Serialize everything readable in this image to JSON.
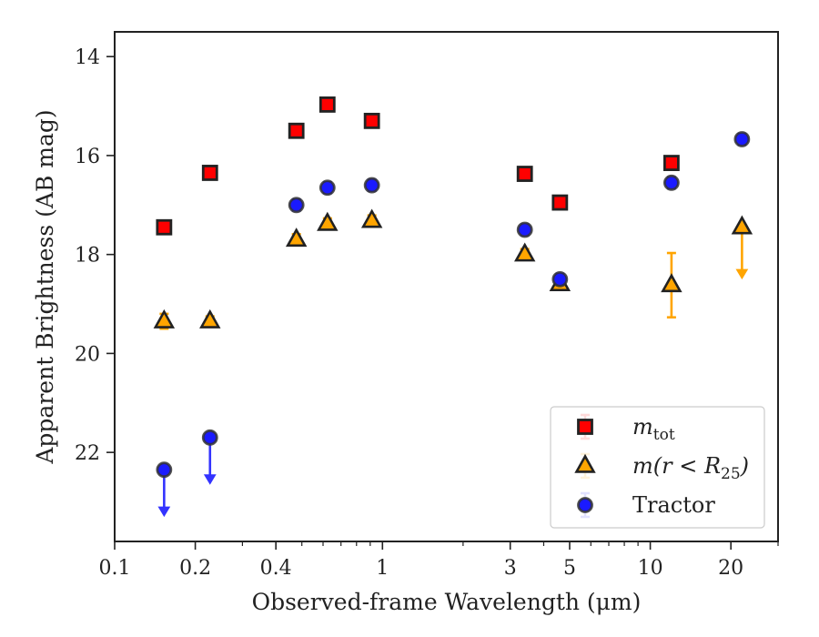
{
  "chart_data": {
    "type": "scatter",
    "xlabel": "Observed-frame Wavelength (μm)",
    "ylabel": "Apparent Brightness (AB mag)",
    "x_scale": "log",
    "xlim": [
      0.1,
      30
    ],
    "ylim": [
      23.8,
      13.5
    ],
    "y_inverted": true,
    "x_ticks": [
      {
        "value": 0.1,
        "label": "0.1"
      },
      {
        "value": 0.2,
        "label": "0.2"
      },
      {
        "value": 0.4,
        "label": "0.4"
      },
      {
        "value": 1,
        "label": "1"
      },
      {
        "value": 3,
        "label": "3"
      },
      {
        "value": 5,
        "label": "5"
      },
      {
        "value": 10,
        "label": "10"
      },
      {
        "value": 20,
        "label": "20"
      }
    ],
    "y_ticks": [
      {
        "value": 14,
        "label": "14"
      },
      {
        "value": 16,
        "label": "16"
      },
      {
        "value": 18,
        "label": "18"
      },
      {
        "value": 20,
        "label": "20"
      },
      {
        "value": 22,
        "label": "22"
      }
    ],
    "grid": false,
    "legend_position": "bottom-right",
    "legend": [
      {
        "label_main": "m",
        "label_sub": "tot",
        "marker": "square"
      },
      {
        "label_main": "m(r < R",
        "label_sub": "25",
        "label_suffix": ")",
        "marker": "triangle"
      },
      {
        "label_main": "Tractor",
        "label_sub": "",
        "marker": "circle"
      }
    ],
    "series": [
      {
        "name": "m_tot",
        "marker": "square",
        "color": "#ff0000",
        "edge_color": "#222222",
        "error_color": "#ff0000",
        "points": [
          {
            "x": 0.153,
            "y": 17.45
          },
          {
            "x": 0.227,
            "y": 16.35
          },
          {
            "x": 0.477,
            "y": 15.5
          },
          {
            "x": 0.623,
            "y": 14.97
          },
          {
            "x": 0.913,
            "y": 15.3
          },
          {
            "x": 3.4,
            "y": 16.37
          },
          {
            "x": 4.6,
            "y": 16.95
          },
          {
            "x": 12.0,
            "y": 16.15
          }
        ]
      },
      {
        "name": "m(r<R25)",
        "marker": "triangle",
        "color": "#ffa500",
        "edge_color": "#222222",
        "error_color": "#ffa500",
        "points": [
          {
            "x": 0.153,
            "y": 19.35,
            "err": 0.15
          },
          {
            "x": 0.227,
            "y": 19.35,
            "err": 0.1
          },
          {
            "x": 0.477,
            "y": 17.7
          },
          {
            "x": 0.623,
            "y": 17.38
          },
          {
            "x": 0.913,
            "y": 17.32
          },
          {
            "x": 3.4,
            "y": 18.0
          },
          {
            "x": 4.6,
            "y": 18.6
          },
          {
            "x": 12.0,
            "y": 18.62,
            "err_low": 0.65,
            "err_high": 0.65
          },
          {
            "x": 22.0,
            "y": 17.45,
            "upper_limit": true,
            "limit_to": 18.45
          }
        ]
      },
      {
        "name": "Tractor",
        "marker": "circle",
        "color": "#1a1aff",
        "edge_color": "#333333",
        "error_color": "#3333ff",
        "points": [
          {
            "x": 0.153,
            "y": 22.35,
            "upper_limit": true,
            "limit_to": 23.25
          },
          {
            "x": 0.227,
            "y": 21.7,
            "upper_limit": true,
            "limit_to": 22.6
          },
          {
            "x": 0.477,
            "y": 17.0
          },
          {
            "x": 0.623,
            "y": 16.65
          },
          {
            "x": 0.913,
            "y": 16.6
          },
          {
            "x": 3.4,
            "y": 17.5
          },
          {
            "x": 4.6,
            "y": 18.5
          },
          {
            "x": 12.0,
            "y": 16.55
          },
          {
            "x": 22.0,
            "y": 15.67
          }
        ]
      }
    ]
  }
}
